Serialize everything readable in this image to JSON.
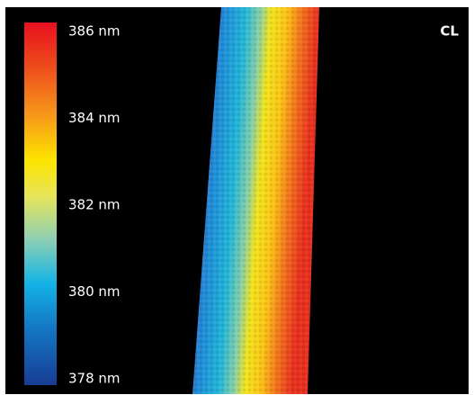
{
  "colorbar": {
    "ticks": [
      {
        "value": 386,
        "label": "386 nm"
      },
      {
        "value": 384,
        "label": "384 nm"
      },
      {
        "value": 382,
        "label": "382 nm"
      },
      {
        "value": 380,
        "label": "380 nm"
      },
      {
        "value": 378,
        "label": "378 nm"
      }
    ]
  },
  "corner_label": "CL"
}
